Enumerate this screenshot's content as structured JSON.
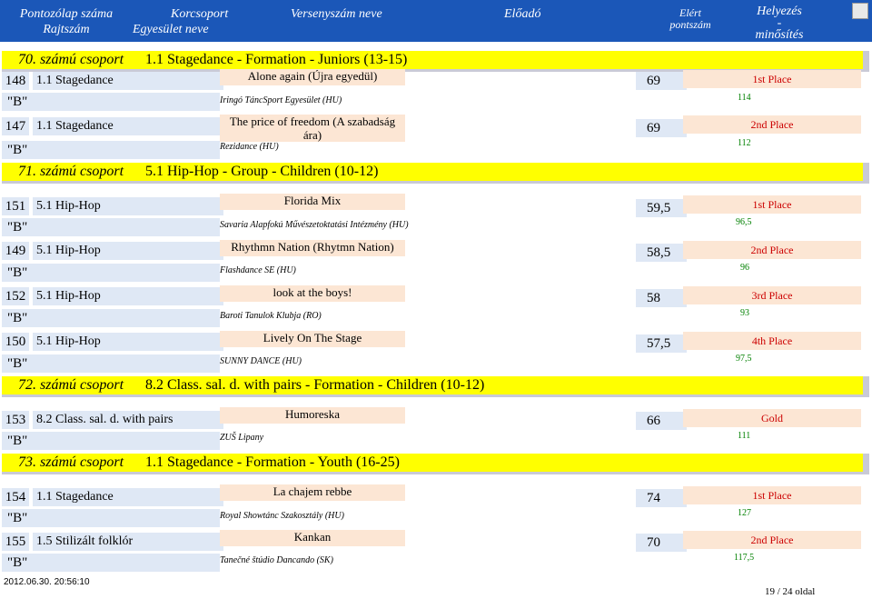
{
  "header": {
    "col_no": "Pontozólap száma",
    "col_reg": "Rajtszám",
    "col_cat": "Korcsoport",
    "col_club": "Egyesület neve",
    "col_title": "Versenyszám neve",
    "col_perf": "Előadó",
    "col_pts1": "Elért",
    "col_pts2": "pontszám",
    "col_qual1": "Helyezés",
    "col_qual2": "-",
    "col_qual3": "minősítés"
  },
  "groups": [
    {
      "label": "70. számú csoport",
      "title": "1.1 Stagedance - Formation - Juniors (13-15)"
    },
    {
      "label": "71. számú csoport",
      "title": "5.1 Hip-Hop - Group - Children (10-12)"
    },
    {
      "label": "72. számú csoport",
      "title": "8.2 Class. sal. d. with pairs - Formation - Children (10-12)"
    },
    {
      "label": "73. számú csoport",
      "title": "1.1 Stagedance - Formation - Youth (16-25)"
    }
  ],
  "entries": [
    {
      "num": "148",
      "cat": "1.1 Stagedance",
      "cls": "\"B\"",
      "title": "Alone again (Újra egyedül)",
      "club": "Iringó TáncSport Egyesület (HU)",
      "pts": "69",
      "place": "1st Place",
      "qual": "114"
    },
    {
      "num": "147",
      "cat": "1.1 Stagedance",
      "cls": "\"B\"",
      "title": "The price of freedom (A szabadság ára)",
      "club": "Rezidance (HU)",
      "pts": "69",
      "place": "2nd Place",
      "qual": "112"
    },
    {
      "num": "151",
      "cat": "5.1 Hip-Hop",
      "cls": "\"B\"",
      "title": "Florida Mix",
      "club": "Savaria Alapfokú Művészetoktatási Intézmény (HU)",
      "pts": "59,5",
      "place": "1st Place",
      "qual": "96,5"
    },
    {
      "num": "149",
      "cat": "5.1 Hip-Hop",
      "cls": "\"B\"",
      "title": "Rhythmn Nation (Rhytmn Nation)",
      "club": "Flashdance SE (HU)",
      "pts": "58,5",
      "place": "2nd Place",
      "qual": "96"
    },
    {
      "num": "152",
      "cat": "5.1 Hip-Hop",
      "cls": "\"B\"",
      "title": "look at the boys!",
      "club": "Baroti Tanulok Klubja (RO)",
      "pts": "58",
      "place": "3rd Place",
      "qual": "93"
    },
    {
      "num": "150",
      "cat": "5.1 Hip-Hop",
      "cls": "\"B\"",
      "title": "Lively On The Stage",
      "club": "SUNNY DANCE (HU)",
      "pts": "57,5",
      "place": "4th Place",
      "qual": "97,5"
    },
    {
      "num": "153",
      "cat": "8.2 Class. sal. d. with pairs",
      "cls": "\"B\"",
      "title": "Humoreska",
      "club": "ZUŠ Lipany",
      "pts": "66",
      "place": "Gold",
      "qual": "111"
    },
    {
      "num": "154",
      "cat": "1.1 Stagedance",
      "cls": "\"B\"",
      "title": "La chajem rebbe",
      "club": "Royal Showtánc Szakosztály (HU)",
      "pts": "74",
      "place": "1st Place",
      "qual": "127"
    },
    {
      "num": "155",
      "cat": "1.5 Stilizált folklór",
      "cls": "\"B\"",
      "title": "Kankan",
      "club": "Tanečné štúdio Dancando (SK)",
      "pts": "70",
      "place": "2nd Place",
      "qual": "117,5"
    }
  ],
  "footer": {
    "date": "2012.06.30. 20:56:10",
    "page": "19 / 24 oldal"
  },
  "colors": {
    "header_bg": "#1b57b8",
    "group_bg": "#ffff00",
    "cell_blue": "#dfe8f5",
    "cell_peach": "#fce6d4",
    "place_red": "#cc0000",
    "qual_green": "#008000"
  }
}
